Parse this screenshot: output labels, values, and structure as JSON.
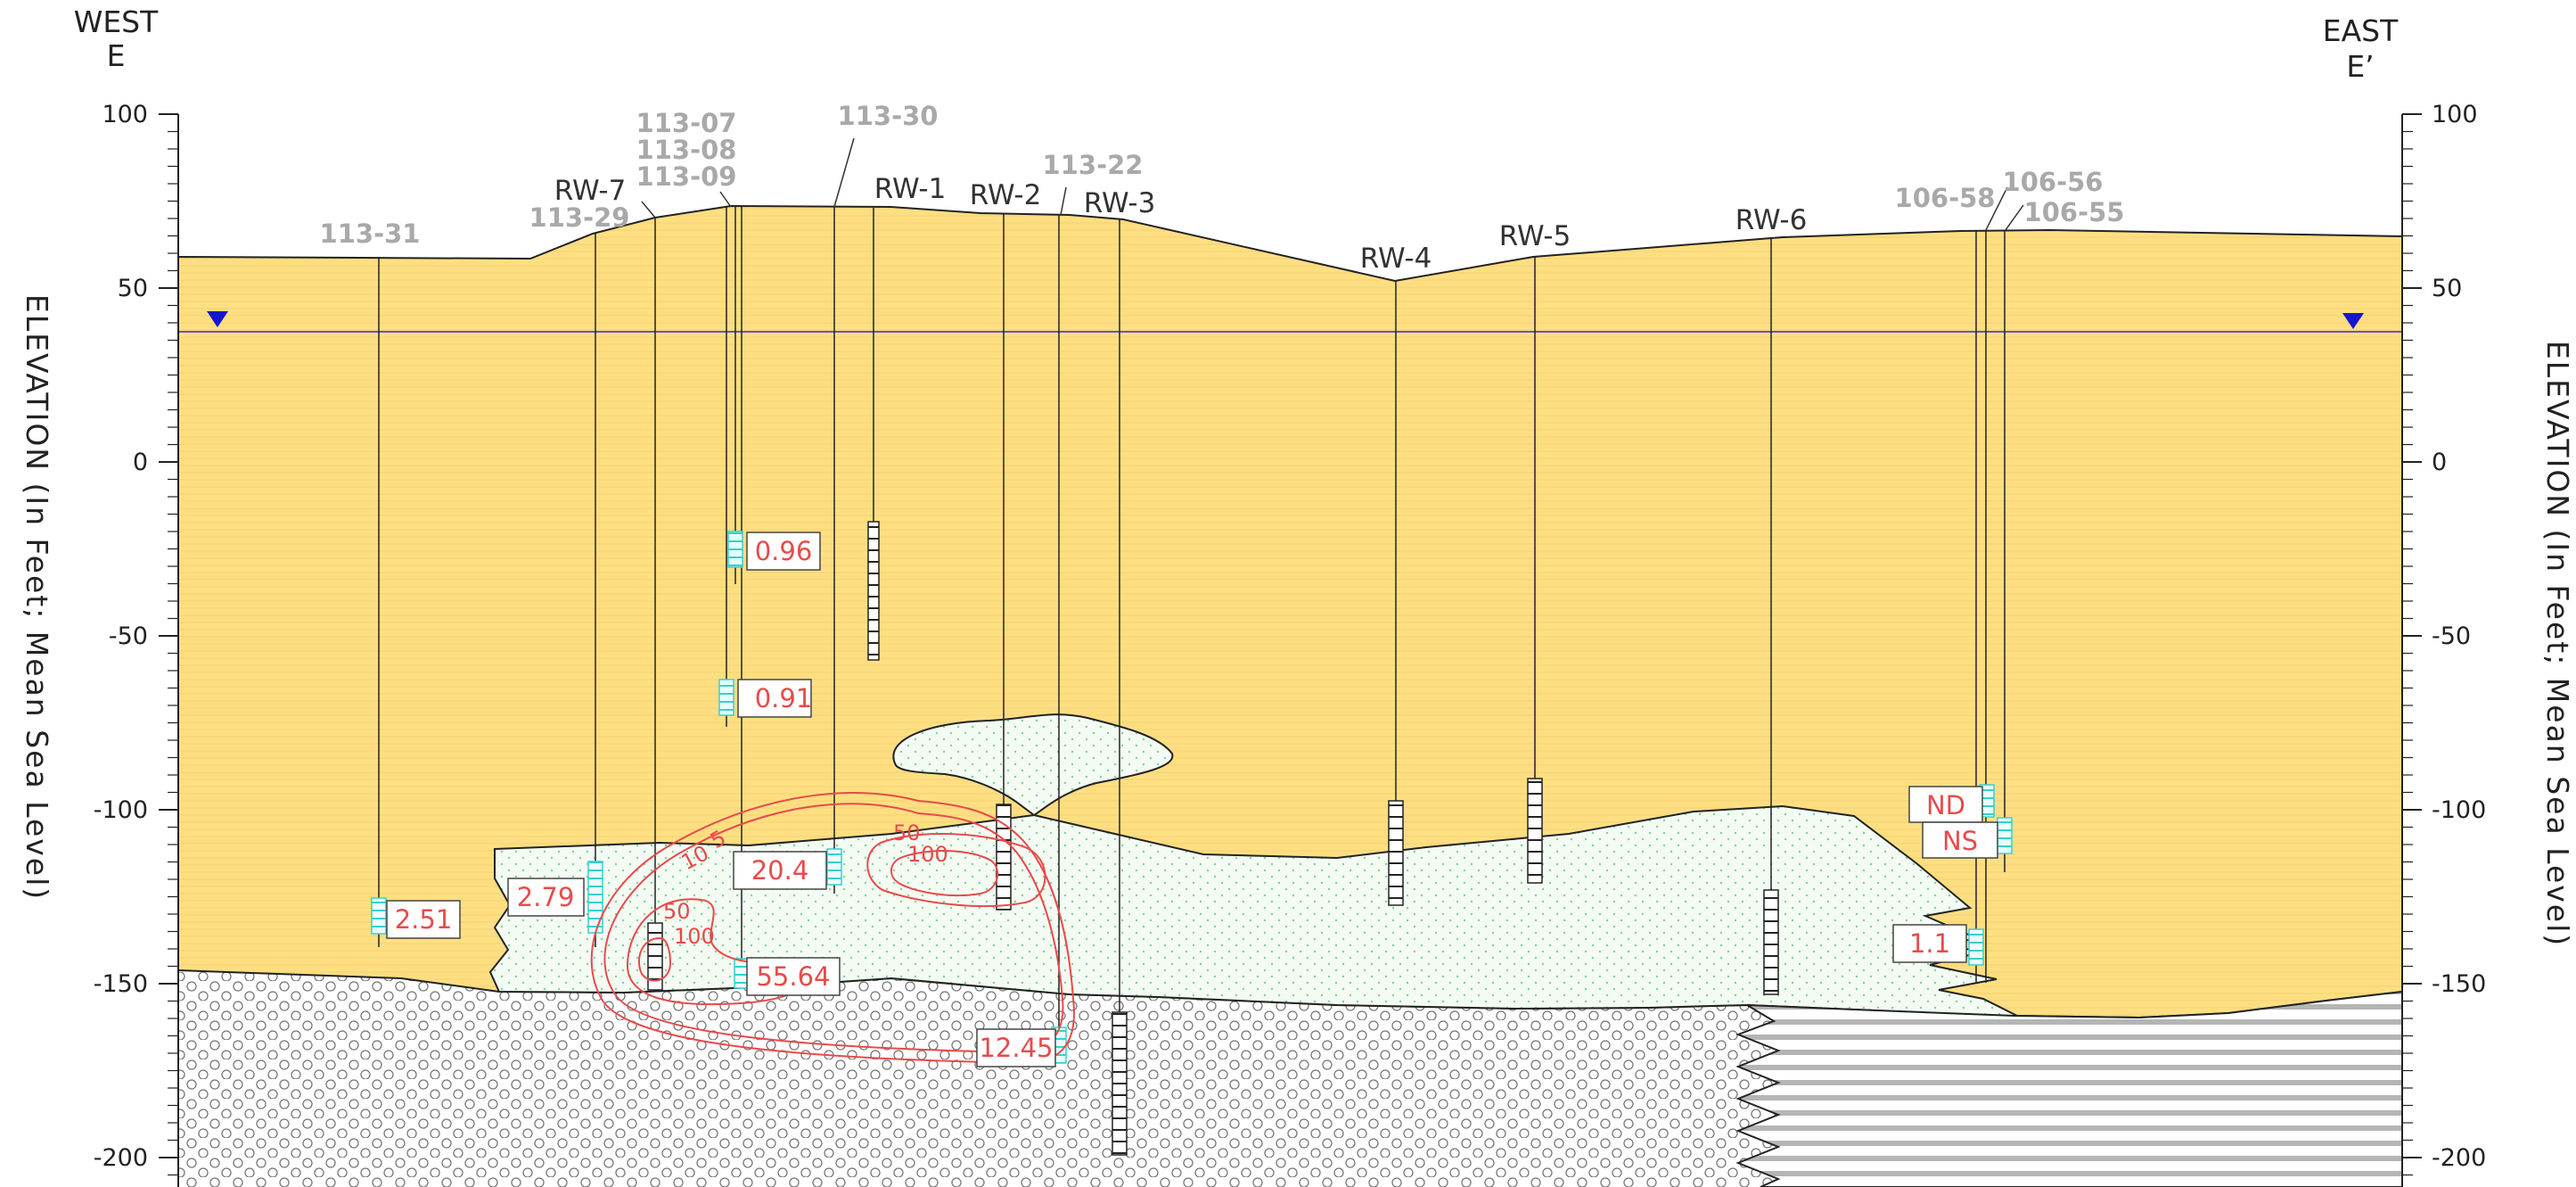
{
  "header": {
    "west": "WEST",
    "west_letter": "E",
    "east": "EAST",
    "east_letter": "E’"
  },
  "axis": {
    "title": "ELEVATION (In Feet; Mean Sea Level)",
    "ticks": [
      "100",
      "50",
      "0",
      "-50",
      "-100",
      "-150",
      "-200"
    ]
  },
  "wells": {
    "w113_31": "113-31",
    "w113_29": "113-29",
    "w113_07": "113-07",
    "w113_08": "113-08",
    "w113_09": "113-09",
    "w113_30": "113-30",
    "w113_22": "113-22",
    "w106_58": "106-58",
    "w106_56": "106-56",
    "w106_55": "106-55",
    "rw7": "RW-7",
    "rw1": "RW-1",
    "rw2": "RW-2",
    "rw3": "RW-3",
    "rw4": "RW-4",
    "rw5": "RW-5",
    "rw6": "RW-6"
  },
  "concentrations": {
    "c096": "0.96",
    "c091": "0.91",
    "c204": "20.4",
    "c251": "2.51",
    "c279": "2.79",
    "c5564": "55.64",
    "c1245": "12.45",
    "nd": "ND",
    "ns": "NS",
    "c11": "1.1"
  },
  "contours": {
    "c10": "10",
    "c5": "5",
    "c50a": "50",
    "c100a": "100",
    "c50b": "50",
    "c100b": "100"
  },
  "colors": {
    "sand": "#fddf82",
    "clay_fill": "#f3fbf3",
    "clay_dots": "#7fd49a",
    "contour": "#e84a4a",
    "screen": "#35d0d0",
    "water_table": "#2b2bd6"
  }
}
